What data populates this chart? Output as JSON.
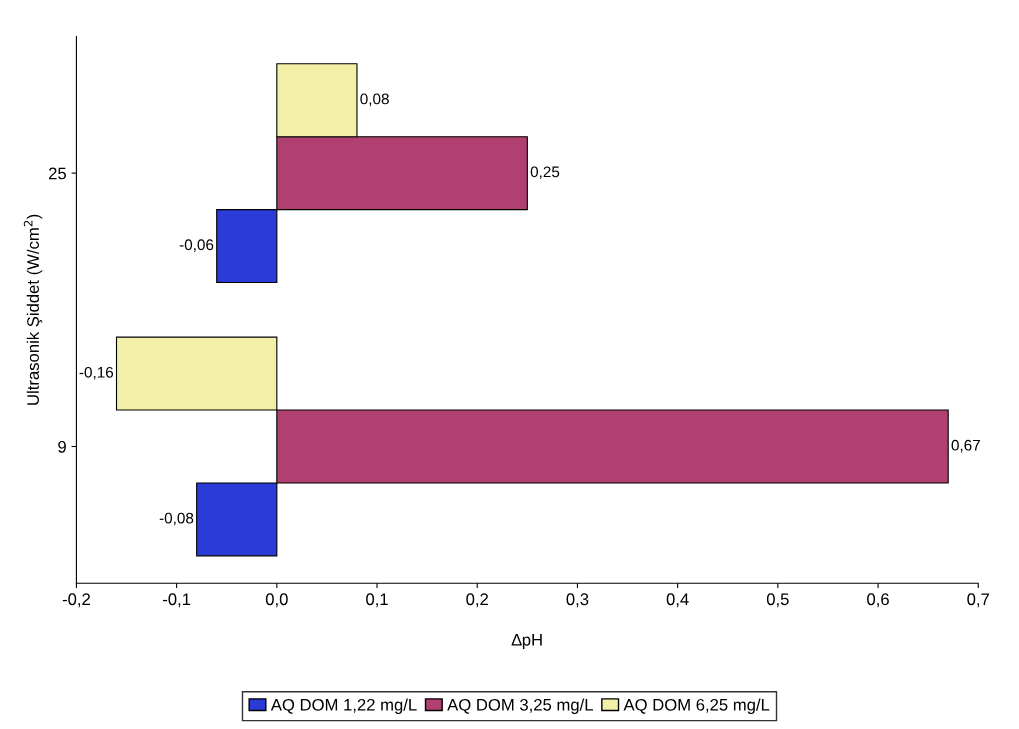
{
  "chart_data": {
    "type": "bar",
    "orientation": "horizontal",
    "xlabel": "∆pH",
    "ylabel": "Ultrasonik Şiddet (W/cm$^{2}$)",
    "categories": [
      "25",
      "9"
    ],
    "series": [
      {
        "name": "AQ DOM 1,22 mg/L",
        "color": "#2b3bd6",
        "values": [
          -0.06,
          -0.08
        ],
        "value_labels": [
          "-0,06",
          "-0,08"
        ]
      },
      {
        "name": "AQ DOM 3,25 mg/L",
        "color": "#b0406f",
        "values": [
          0.25,
          0.67
        ],
        "value_labels": [
          "0,25",
          "0,67"
        ]
      },
      {
        "name": "AQ DOM 6,25 mg/L",
        "color": "#f2f0a8",
        "values": [
          0.08,
          -0.16
        ],
        "value_labels": [
          "0,08",
          "-0,16"
        ]
      }
    ],
    "xlim": [
      -0.2,
      0.7
    ],
    "xticks": [
      {
        "value": -0.2,
        "label": "-0,2"
      },
      {
        "value": -0.1,
        "label": "-0,1"
      },
      {
        "value": 0.0,
        "label": "0,0"
      },
      {
        "value": 0.1,
        "label": "0,1"
      },
      {
        "value": 0.2,
        "label": "0,2"
      },
      {
        "value": 0.3,
        "label": "0,3"
      },
      {
        "value": 0.4,
        "label": "0,4"
      },
      {
        "value": 0.5,
        "label": "0,5"
      },
      {
        "value": 0.6,
        "label": "0,6"
      },
      {
        "value": 0.7,
        "label": "0,7"
      }
    ],
    "grid": false,
    "legend": "bottom"
  }
}
